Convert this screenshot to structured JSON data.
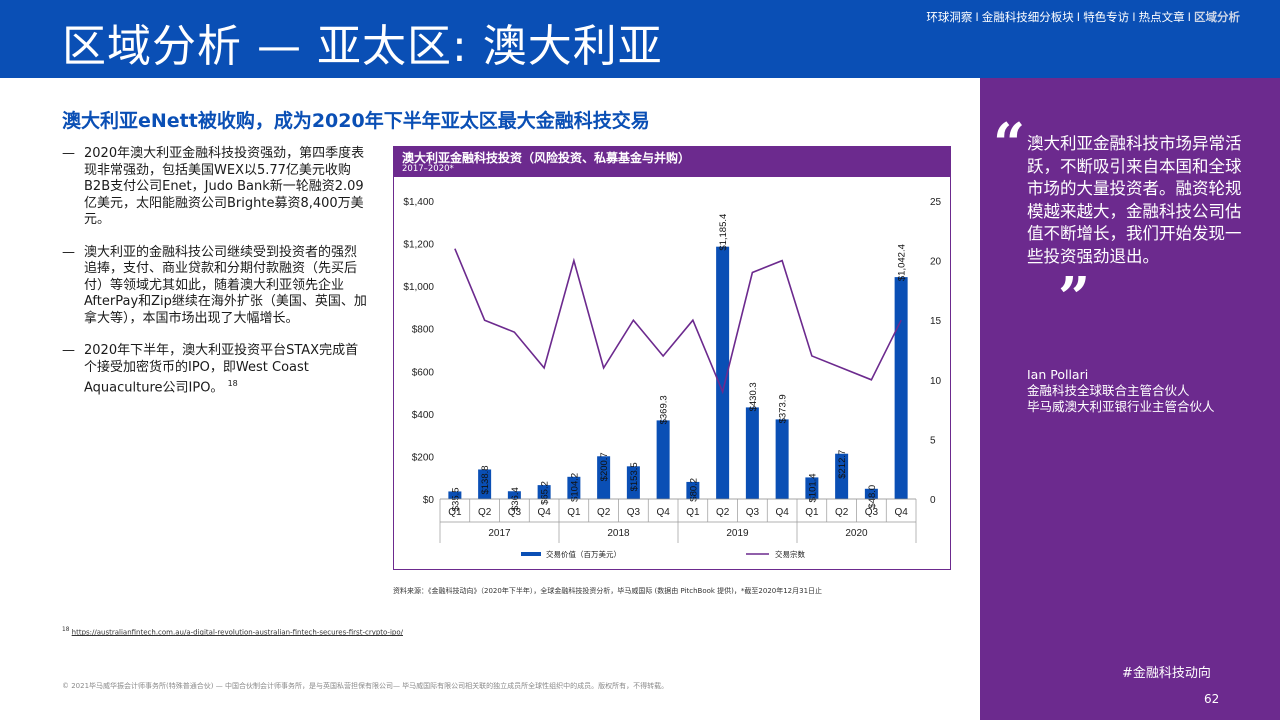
{
  "header": {
    "title": "区域分析 — 亚太区: 澳大利亚",
    "nav": [
      "环球洞察",
      "金融科技细分板块",
      "特色专访",
      "热点文章",
      "区域分析"
    ],
    "nav_sep": "I",
    "active_index": 4
  },
  "subtitle": "澳大利亚eNett被收购，成为2020年下半年亚太区最大金融科技交易",
  "bullets": [
    {
      "dash": "—",
      "text": "2020年澳大利亚金融科技投资强劲，第四季度表现非常强劲，包括美国WEX以5.77亿美元收购B2B支付公司Enet，Judo Bank新一轮融资2.09亿美元，太阳能融资公司Brighte募资8,400万美元。"
    },
    {
      "dash": "—",
      "text": "澳大利亚的金融科技公司继续受到投资者的强烈追捧，支付、商业贷款和分期付款融资（先买后付）等领域尤其如此，随着澳大利亚领先企业AfterPay和Zip继续在海外扩张（美国、英国、加拿大等），本国市场出现了大幅增长。"
    },
    {
      "dash": "—",
      "text": "2020年下半年，澳大利亚投资平台STAX完成首个接受加密货币的IPO，即West Coast Aquaculture公司IPO。",
      "sup": "18"
    }
  ],
  "chart": {
    "title": "澳大利亚金融科技投资（风险投资、私募基金与并购）",
    "subtitle": "2017–2020*"
  },
  "chart_data": {
    "type": "bar",
    "categories": [
      "Q1",
      "Q2",
      "Q3",
      "Q4",
      "Q1",
      "Q2",
      "Q3",
      "Q4",
      "Q1",
      "Q2",
      "Q3",
      "Q4",
      "Q1",
      "Q2",
      "Q3",
      "Q4"
    ],
    "years": [
      "2017",
      "2018",
      "2019",
      "2020"
    ],
    "series": [
      {
        "name": "交易价值（百万美元）",
        "type": "bar",
        "axis": "left",
        "color": "#0a4fb5",
        "values": [
          35.5,
          138.8,
          36.4,
          65.2,
          104.2,
          200.7,
          153.5,
          369.3,
          80.2,
          1185.4,
          430.3,
          373.9,
          101.4,
          212.7,
          48.0,
          1042.4
        ],
        "labels": [
          "$35.5",
          "$138.8",
          "$36.4",
          "$65.2",
          "$104.2",
          "$200.7",
          "$153.5",
          "$369.3",
          "$80.2",
          "$1,185.4",
          "$430.3",
          "$373.9",
          "$101.4",
          "$212.7",
          "$48.0",
          "$1,042.4"
        ]
      },
      {
        "name": "交易宗数",
        "type": "line",
        "axis": "right",
        "color": "#6c2a8e",
        "values": [
          21,
          15,
          14,
          11,
          20,
          11,
          15,
          12,
          15,
          9,
          19,
          20,
          12,
          11,
          10,
          15
        ]
      }
    ],
    "y_left": {
      "min": 0,
      "max": 1400,
      "ticks": [
        0,
        200,
        400,
        600,
        800,
        1000,
        1200,
        1400
      ],
      "tick_labels": [
        "$0",
        "$200",
        "$400",
        "$600",
        "$800",
        "$1,000",
        "$1,200",
        "$1,400"
      ]
    },
    "y_right": {
      "min": 0,
      "max": 25,
      "ticks": [
        0,
        5,
        10,
        15,
        20,
        25
      ],
      "tick_labels": [
        "0",
        "5",
        "10",
        "15",
        "20",
        "25"
      ]
    },
    "legend_position": "bottom",
    "grid": false
  },
  "source": "资料来源：《金融科技动向》（2020年下半年），全球金融科技投资分析，毕马威国际 (数据由 PitchBook 提供)，*截至2020年12月31日止",
  "footnote": {
    "num": "18",
    "url": "https://australianfintech.com.au/a-digital-revolution-australian-fintech-secures-first-crypto-ipo/"
  },
  "copyright": "© 2021毕马威华振会计师事务所(特殊普通合伙) — 中国合伙制会计师事务所，是与英国私营担保有限公司— 毕马威国际有限公司相关联的独立成员所全球性组织中的成员。版权所有，不得转载。",
  "quote": {
    "open": "“",
    "text": "澳大利亚金融科技市场异常活跃，不断吸引来自本国和全球市场的大量投资者。融资轮规模越来越大，金融科技公司估值不断增长，我们开始发现一些投资强劲退出。",
    "close": "”",
    "name": "Ian Pollari",
    "role1": "金融科技全球联合主管合伙人",
    "role2": "毕马威澳大利亚银行业主管合伙人"
  },
  "hashtag": "#金融科技动向",
  "page_number": "62"
}
